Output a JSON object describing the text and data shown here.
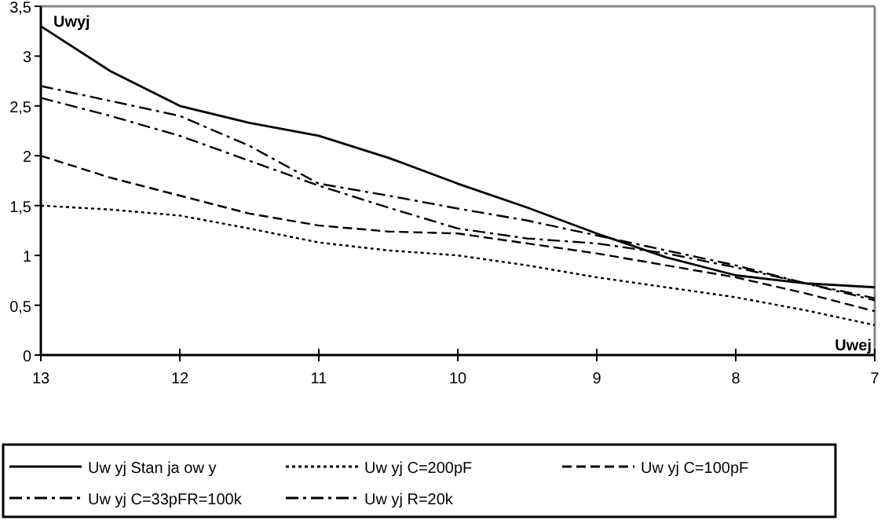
{
  "chart_data": {
    "type": "line",
    "xlabel": "Uwej",
    "ylabel": "Uwyj",
    "x": [
      13,
      12.5,
      12,
      11.5,
      11,
      10.5,
      10,
      9.5,
      9,
      8.5,
      8,
      7.5,
      7
    ],
    "xlim": [
      13,
      7
    ],
    "xticks": [
      13,
      12,
      11,
      10,
      9,
      8,
      7
    ],
    "ylim": [
      0,
      3.5
    ],
    "yticks": [
      0,
      {
        "value": 0.5,
        "label": "0,5"
      },
      1,
      {
        "value": 1.5,
        "label": "1,5"
      },
      2,
      {
        "value": 2.5,
        "label": "2,5"
      },
      3,
      {
        "value": 3.5,
        "label": "3,5"
      }
    ],
    "grid": false,
    "legend": "bottom",
    "marker": "none",
    "series": [
      {
        "name": "Uw yj Stan ja ow y",
        "color": "#000000",
        "line_style": "solid",
        "values": [
          3.3,
          2.85,
          2.5,
          2.33,
          2.2,
          1.98,
          1.72,
          1.48,
          1.22,
          0.98,
          0.8,
          0.72,
          0.68
        ]
      },
      {
        "name": "Uw yj  C=200pF",
        "color": "#000000",
        "line_style": "dotted",
        "values": [
          1.5,
          1.46,
          1.4,
          1.27,
          1.13,
          1.05,
          1.0,
          0.9,
          0.78,
          0.68,
          0.58,
          0.45,
          0.3
        ]
      },
      {
        "name": "Uw yj  C=100pF",
        "color": "#000000",
        "line_style": "dashed",
        "values": [
          2.0,
          1.78,
          1.6,
          1.42,
          1.3,
          1.24,
          1.22,
          1.12,
          1.02,
          0.9,
          0.78,
          0.62,
          0.44
        ]
      },
      {
        "name": "Uw yj  C=33pFR=100k",
        "color": "#000000",
        "line_style": "dashdot",
        "values": [
          2.7,
          2.55,
          2.4,
          2.1,
          1.72,
          1.6,
          1.47,
          1.35,
          1.2,
          1.05,
          0.9,
          0.72,
          0.57
        ]
      },
      {
        "name": "Uw yj  R=20k",
        "color": "#000000",
        "line_style": "dashdot",
        "values": [
          2.58,
          2.4,
          2.2,
          1.95,
          1.7,
          1.48,
          1.27,
          1.17,
          1.12,
          1.02,
          0.88,
          0.72,
          0.55
        ]
      }
    ]
  }
}
